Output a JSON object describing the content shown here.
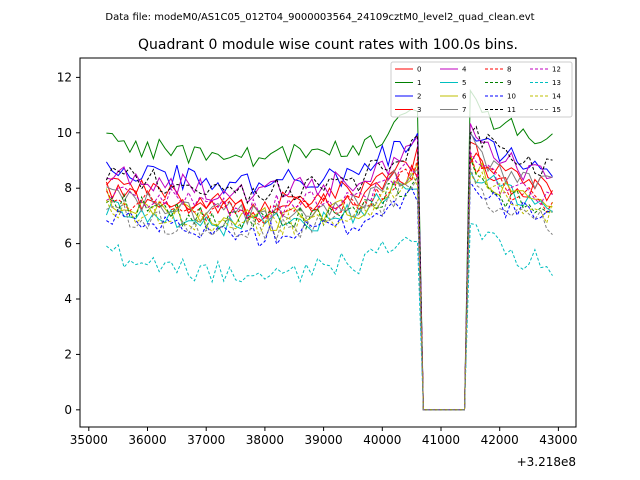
{
  "suptitle": "Data file: modeM0/AS1C05_012T04_9000003564_24109cztM0_level2_quad_clean.evt",
  "chart_data": {
    "type": "line",
    "title": "Quadrant 0 module wise count rates with 100.0s bins.",
    "xlabel": "",
    "ylabel": "",
    "x_offset_label": "+3.218e8",
    "xlim": [
      34850,
      43300
    ],
    "ylim": [
      -0.62,
      12.7
    ],
    "x_ticks": [
      35000,
      36000,
      37000,
      38000,
      39000,
      40000,
      41000,
      42000,
      43000
    ],
    "y_ticks": [
      0,
      2,
      4,
      6,
      8,
      10,
      12
    ],
    "legend_position": "top-right",
    "x_start": 35300,
    "bin_width": 100,
    "gap_start": 40700,
    "gap_end": 41400,
    "series": [
      {
        "name": "0",
        "color": "#ff0000",
        "style": "solid",
        "base": 7.9,
        "right": 8.3
      },
      {
        "name": "1",
        "color": "#008000",
        "style": "solid",
        "base": 9.8,
        "right": 10.3
      },
      {
        "name": "2",
        "color": "#0000ff",
        "style": "solid",
        "base": 8.9,
        "right": 9.3
      },
      {
        "name": "3",
        "color": "#ff0000",
        "style": "solid",
        "base": 8.2,
        "right": 8.6
      },
      {
        "name": "4",
        "color": "#bf00bf",
        "style": "solid",
        "base": 8.6,
        "right": 9.0
      },
      {
        "name": "5",
        "color": "#00bfbf",
        "style": "solid",
        "base": 7.4,
        "right": 7.9
      },
      {
        "name": "6",
        "color": "#bfbf00",
        "style": "solid",
        "base": 7.6,
        "right": 8.0
      },
      {
        "name": "7",
        "color": "#808080",
        "style": "solid",
        "base": 7.8,
        "right": 8.6
      },
      {
        "name": "8",
        "color": "#ff0000",
        "style": "dashed",
        "base": 7.8,
        "right": 8.1
      },
      {
        "name": "9",
        "color": "#008000",
        "style": "dashed",
        "base": 7.5,
        "right": 7.8
      },
      {
        "name": "10",
        "color": "#0000ff",
        "style": "dashed",
        "base": 7.0,
        "right": 7.4
      },
      {
        "name": "11",
        "color": "#000000",
        "style": "dashed",
        "base": 8.6,
        "right": 9.3
      },
      {
        "name": "12",
        "color": "#bf00bf",
        "style": "dashed",
        "base": 8.0,
        "right": 8.2
      },
      {
        "name": "13",
        "color": "#00bfbf",
        "style": "dashed",
        "base": 5.6,
        "right": 5.8
      },
      {
        "name": "14",
        "color": "#bfbf00",
        "style": "dashed",
        "base": 7.4,
        "right": 7.7
      },
      {
        "name": "15",
        "color": "#808080",
        "style": "dashed",
        "base": 7.2,
        "right": 7.3
      }
    ]
  }
}
